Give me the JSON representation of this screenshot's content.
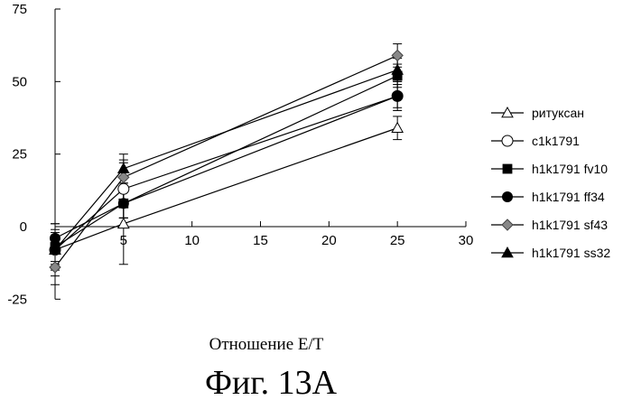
{
  "chart_data": {
    "type": "line",
    "title": "",
    "xlabel": "Отношение E/T",
    "ylabel": "",
    "caption": "Фиг. 13A",
    "xlim": [
      0,
      30
    ],
    "ylim": [
      -25,
      75
    ],
    "xticks": [
      5,
      10,
      15,
      20,
      25,
      30
    ],
    "yticks": [
      75,
      50,
      25,
      0,
      -25
    ],
    "x": [
      0,
      5,
      25
    ],
    "series": [
      {
        "name": "ритуксан",
        "marker": "triangle-open",
        "values": [
          -8,
          1,
          34
        ],
        "err": [
          9,
          14,
          4
        ]
      },
      {
        "name": "c1k1791",
        "marker": "circle-open",
        "values": [
          -8,
          13,
          45
        ],
        "err": [
          7,
          10,
          5
        ]
      },
      {
        "name": "h1k1791 fv10",
        "marker": "square-filled",
        "values": [
          -7,
          8,
          52
        ],
        "err": [
          5,
          5,
          4
        ]
      },
      {
        "name": "h1k1791 ff34",
        "marker": "circle-filled",
        "values": [
          -4,
          8,
          45
        ],
        "err": [
          5,
          5,
          4
        ]
      },
      {
        "name": "h1k1791 sf43",
        "marker": "diamond",
        "values": [
          -14,
          17,
          59
        ],
        "err": [
          6,
          5,
          4
        ]
      },
      {
        "name": "h1k1791 ss32",
        "marker": "triangle-filled",
        "values": [
          -8,
          20,
          54
        ],
        "err": [
          5,
          5,
          4
        ]
      }
    ]
  }
}
